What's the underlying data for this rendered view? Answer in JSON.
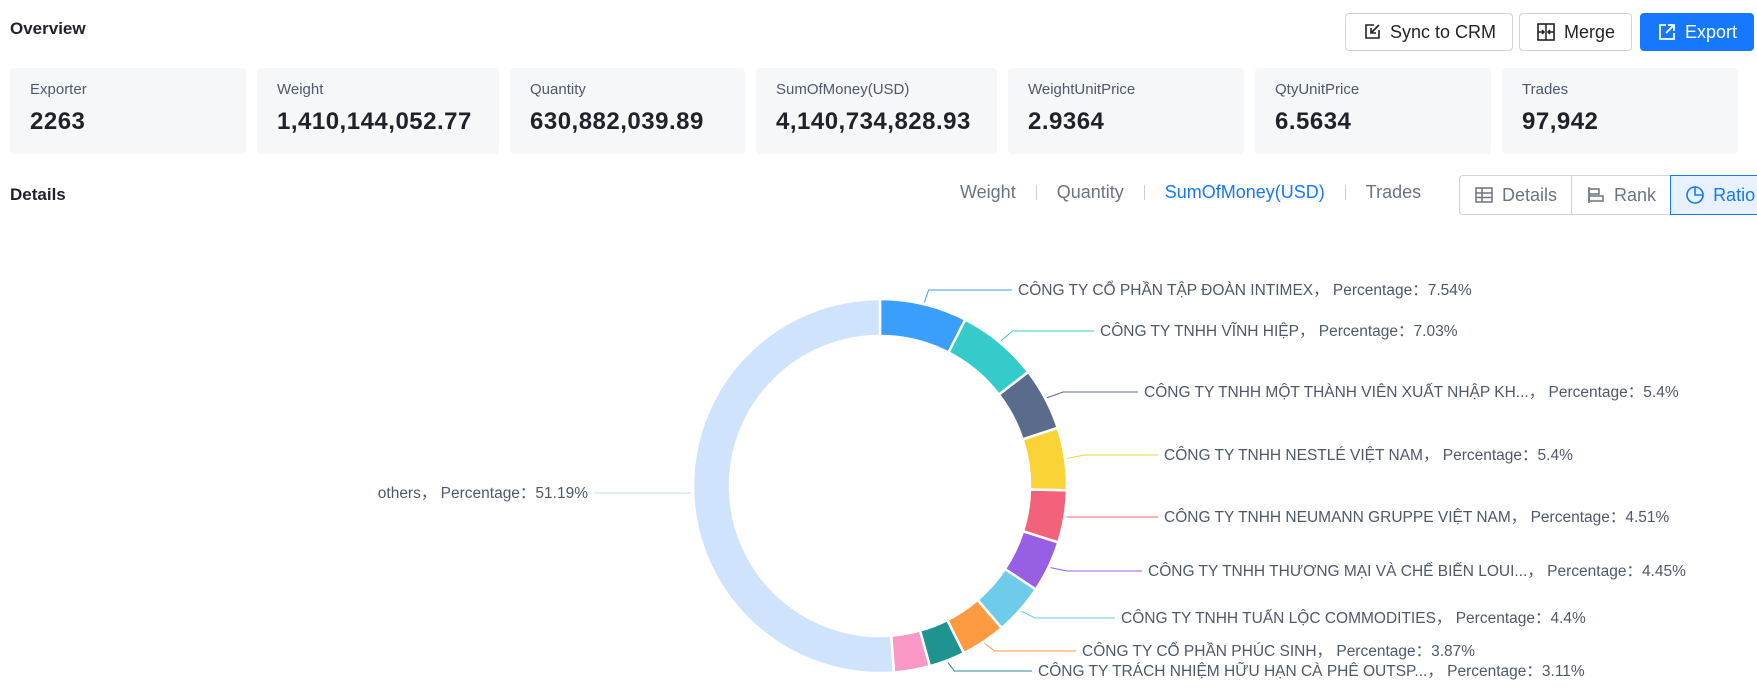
{
  "overview": {
    "title": "Overview",
    "buttons": {
      "sync": "Sync to CRM",
      "merge": "Merge",
      "export": "Export"
    }
  },
  "stats": [
    {
      "label": "Exporter",
      "value": "2263"
    },
    {
      "label": "Weight",
      "value": "1,410,144,052.77"
    },
    {
      "label": "Quantity",
      "value": "630,882,039.89"
    },
    {
      "label": "SumOfMoney(USD)",
      "value": "4,140,734,828.93"
    },
    {
      "label": "WeightUnitPrice",
      "value": "2.9364"
    },
    {
      "label": "QtyUnitPrice",
      "value": "6.5634"
    },
    {
      "label": "Trades",
      "value": "97,942"
    }
  ],
  "details": {
    "title": "Details",
    "metric_tabs": [
      "Weight",
      "Quantity",
      "SumOfMoney(USD)",
      "Trades"
    ],
    "active_metric": "SumOfMoney(USD)",
    "views": [
      "Details",
      "Rank",
      "Ratio"
    ],
    "active_view": "Ratio"
  },
  "chart_data": {
    "type": "pie",
    "variant": "donut",
    "value_label": "Percentage",
    "slices": [
      {
        "name": "CÔNG TY CỔ PHẦN TẬP ĐOÀN INTIMEX",
        "percent": 7.54,
        "color": "#3a9efc"
      },
      {
        "name": "CÔNG TY TNHH VĨNH HIỆP",
        "percent": 7.03,
        "color": "#36cbcb"
      },
      {
        "name": "CÔNG TY TNHH MỘT THÀNH VIÊN XUẤT NHẬP KH...",
        "percent": 5.4,
        "color": "#5b6b8c"
      },
      {
        "name": "CÔNG TY TNHH NESTLÉ VIỆT NAM",
        "percent": 5.4,
        "color": "#fad337"
      },
      {
        "name": "CÔNG TY TNHH NEUMANN GRUPPE VIỆT NAM",
        "percent": 4.51,
        "color": "#f2637b"
      },
      {
        "name": "CÔNG TY TNHH THƯƠNG MẠI VÀ CHẾ BIẾN LOUI...",
        "percent": 4.45,
        "color": "#975fe4"
      },
      {
        "name": "CÔNG TY TNHH TUẤN LỘC COMMODITIES",
        "percent": 4.4,
        "color": "#6ecbea"
      },
      {
        "name": "CÔNG TY CỔ PHẦN PHÚC SINH",
        "percent": 3.87,
        "color": "#fe9a3f"
      },
      {
        "name": "CÔNG TY TRÁCH NHIỆM HỮU HẠN CÀ PHÊ OUTSP...",
        "percent": 3.11,
        "color": "#1f9390"
      },
      {
        "name": "",
        "percent": 3.1,
        "color": "#fc98c6"
      },
      {
        "name": "others",
        "percent": 51.19,
        "color": "#cfe4fc"
      }
    ]
  }
}
